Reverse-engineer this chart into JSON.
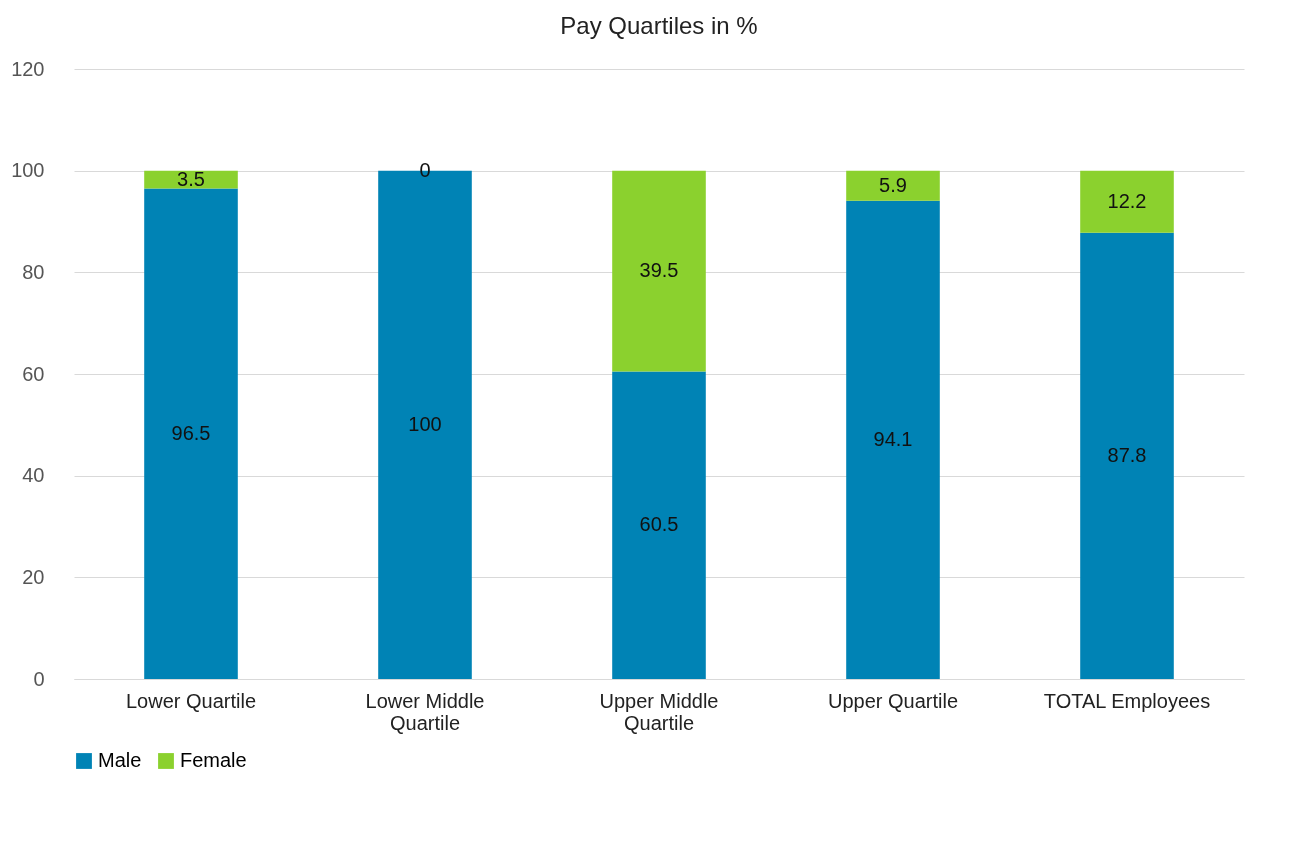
{
  "chart_data": {
    "type": "bar",
    "title": "Pay Quartiles in %",
    "stacked": true,
    "categories": [
      "Lower Quartile",
      "Lower Middle Quartile",
      "Upper Middle Quartile",
      "Upper Quartile",
      "TOTAL Employees"
    ],
    "series": [
      {
        "name": "Male",
        "color": "#0083b5",
        "values": [
          96.5,
          100,
          60.5,
          94.1,
          87.8
        ]
      },
      {
        "name": "Female",
        "color": "#8bd12e",
        "values": [
          3.5,
          0,
          39.5,
          5.9,
          12.2
        ]
      }
    ],
    "ylim": [
      0,
      120
    ],
    "yticks": [
      0,
      20,
      40,
      60,
      80,
      100,
      120
    ],
    "grid": "y",
    "legend": "bottom",
    "data_labels": true
  }
}
